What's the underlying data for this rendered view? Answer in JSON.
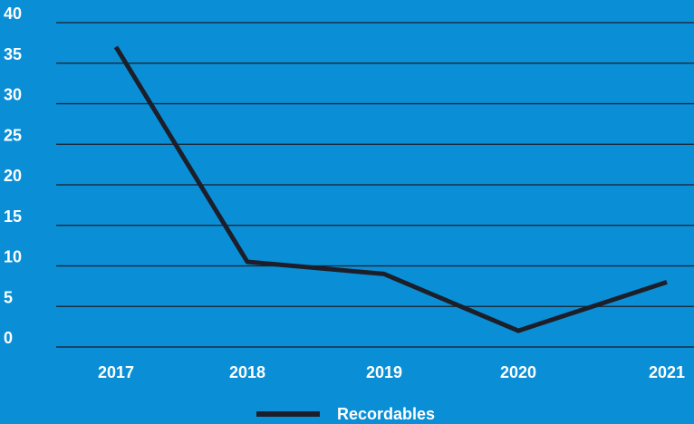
{
  "chart_data": {
    "type": "line",
    "categories": [
      "2017",
      "2018",
      "2019",
      "2020",
      "2021"
    ],
    "series": [
      {
        "name": "Recordables",
        "values": [
          37,
          10.5,
          9,
          2,
          8
        ],
        "color": "#1c1f2a"
      }
    ],
    "y_ticks": [
      "0",
      "5",
      "10",
      "15",
      "20",
      "25",
      "30",
      "35",
      "40"
    ],
    "ylim": [
      0,
      40
    ],
    "grid": true,
    "legend": "bottom-center",
    "colors": {
      "background": "#0a8fd6",
      "gridline": "#1c1f2a",
      "text": "#ffffff"
    }
  }
}
